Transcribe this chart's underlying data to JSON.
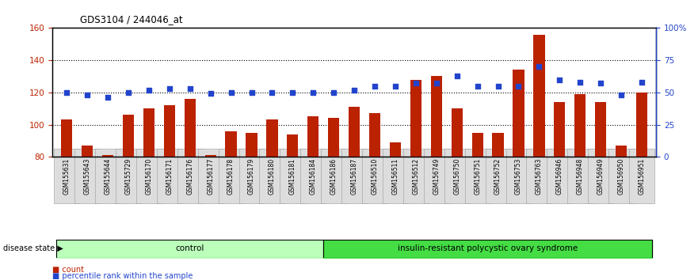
{
  "title": "GDS3104 / 244046_at",
  "samples": [
    "GSM155631",
    "GSM155643",
    "GSM155644",
    "GSM155729",
    "GSM156170",
    "GSM156171",
    "GSM156176",
    "GSM156177",
    "GSM156178",
    "GSM156179",
    "GSM156180",
    "GSM156181",
    "GSM156184",
    "GSM156186",
    "GSM156187",
    "GSM156510",
    "GSM156511",
    "GSM156512",
    "GSM156749",
    "GSM156750",
    "GSM156751",
    "GSM156752",
    "GSM156753",
    "GSM156763",
    "GSM156946",
    "GSM156948",
    "GSM156949",
    "GSM156950",
    "GSM156951"
  ],
  "bar_values": [
    103,
    87,
    81,
    106,
    110,
    112,
    116,
    81,
    96,
    95,
    103,
    94,
    105,
    104,
    111,
    107,
    89,
    128,
    130,
    110,
    95,
    95,
    134,
    156,
    114,
    119,
    114,
    87,
    120
  ],
  "percentile_values": [
    50,
    48,
    46,
    50,
    52,
    53,
    53,
    49,
    50,
    50,
    50,
    50,
    50,
    50,
    52,
    55,
    55,
    57,
    57,
    63,
    55,
    55,
    55,
    70,
    60,
    58,
    57,
    48,
    58
  ],
  "n_control": 13,
  "n_disease": 16,
  "bar_color": "#bb2200",
  "dot_color": "#2244cc",
  "ylim_left": [
    80,
    160
  ],
  "ylim_right": [
    0,
    100
  ],
  "yticks_left": [
    80,
    100,
    120,
    140,
    160
  ],
  "yticks_right": [
    0,
    25,
    50,
    75,
    100
  ],
  "ytick_labels_right": [
    "0",
    "25",
    "50",
    "75",
    "100%"
  ],
  "grid_vals": [
    100,
    120,
    140
  ],
  "control_label": "control",
  "disease_label": "insulin-resistant polycystic ovary syndrome",
  "disease_state_label": "disease state",
  "legend_count_label": "count",
  "legend_pct_label": "percentile rank within the sample",
  "control_color": "#bbffbb",
  "disease_color": "#44dd44",
  "xtick_bg": "#dddddd"
}
